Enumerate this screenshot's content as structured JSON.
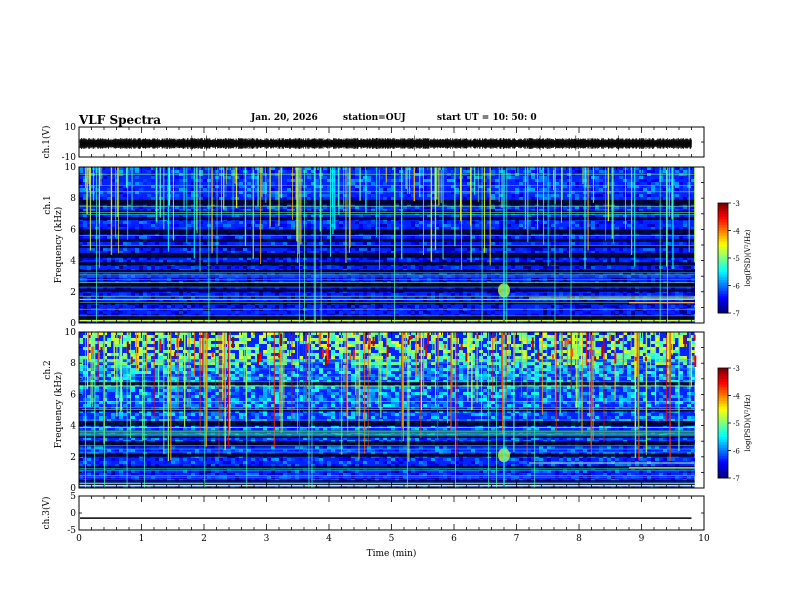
{
  "header": {
    "title": "VLF Spectra",
    "date": "Jan. 20, 2026",
    "station": "station=OUJ",
    "start": "start  UT  =   10: 50: 0"
  },
  "chart_data": [
    {
      "type": "line",
      "name": "ch1-waveform",
      "ylabel": "ch.1(V)",
      "ylim": [
        -10,
        10
      ],
      "yticks": [
        "10",
        "-10"
      ],
      "xlim": [
        0,
        10
      ],
      "description_values": {
        "mean": -1,
        "amplitude": 1.2,
        "data_end_min": 9.8
      }
    },
    {
      "type": "heatmap",
      "name": "ch1-spectrogram",
      "ylabel_top": "ch.1",
      "ylabel": "Frequency (kHz)",
      "ylim": [
        0,
        10
      ],
      "yticks": [
        "0",
        "2",
        "4",
        "6",
        "8",
        "10"
      ],
      "xlim": [
        0,
        10
      ],
      "colorbar": {
        "label": "log(PSD)(V²/Hz)",
        "range": [
          -7,
          -3
        ],
        "ticks": [
          "-3",
          "-4",
          "-5",
          "-6",
          "-7"
        ]
      },
      "bands_khz": [
        0.4,
        1.3,
        2.1,
        2.5,
        3.3,
        3.8,
        4.4,
        4.9,
        5.3,
        5.9,
        6.7,
        7.1,
        7.8
      ],
      "event_min": 6.8
    },
    {
      "type": "heatmap",
      "name": "ch2-spectrogram",
      "ylabel_top": "ch.2",
      "ylabel": "Frequency (kHz)",
      "ylim": [
        0,
        10
      ],
      "yticks": [
        "0",
        "2",
        "4",
        "6",
        "8",
        "10"
      ],
      "xlim": [
        0,
        10
      ],
      "colorbar": {
        "label": "log(PSD)(V²/Hz)",
        "range": [
          -7,
          -3
        ],
        "ticks": [
          "-3",
          "-4",
          "-5",
          "-6",
          "-7"
        ]
      },
      "bands_khz": [
        0.4,
        1.3,
        2.1,
        2.9,
        3.3,
        3.6,
        4.2,
        5.0,
        6.7
      ],
      "event_min": 6.8
    },
    {
      "type": "line",
      "name": "ch3-waveform",
      "ylabel": "ch.3(V)",
      "ylim": [
        -5,
        5
      ],
      "yticks": [
        "5",
        "0",
        "-5"
      ],
      "xlim": [
        0,
        10
      ],
      "xlabel": "Time (min)",
      "xticks": [
        "0",
        "1",
        "2",
        "3",
        "4",
        "5",
        "6",
        "7",
        "8",
        "9",
        "10"
      ],
      "level": -1.5
    }
  ]
}
